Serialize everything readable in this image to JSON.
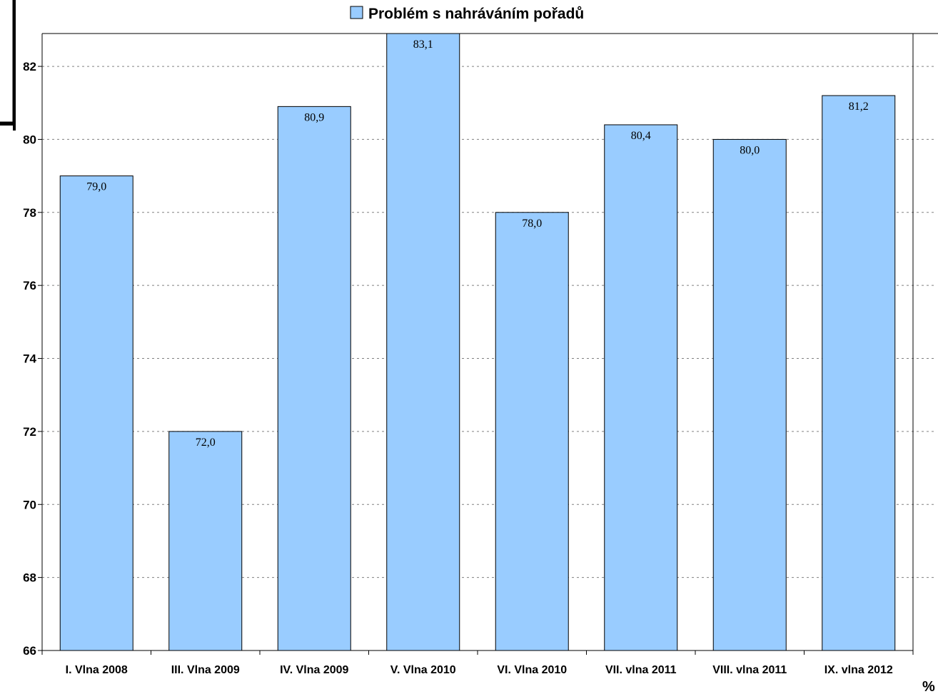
{
  "chart_data": {
    "type": "bar",
    "categories": [
      "I. Vlna 2008",
      "III. Vlna 2009",
      "IV. Vlna 2009",
      "V. Vlna 2010",
      "VI. Vlna 2010",
      "VII. vlna 2011",
      "VIII. vlna 2011",
      "IX. vlna 2012"
    ],
    "series": [
      {
        "name": "Problém s nahráváním pořadů",
        "values": [
          79.0,
          72.0,
          80.9,
          83.1,
          78.0,
          80.4,
          80.0,
          81.2
        ],
        "data_labels": [
          "79,0",
          "72,0",
          "80,9",
          "83,1",
          "78,0",
          "80,4",
          "80,0",
          "81,2"
        ]
      }
    ],
    "ylim": [
      66,
      82.9
    ],
    "yticks": [
      66,
      68,
      70,
      72,
      74,
      76,
      78,
      80,
      82
    ],
    "ytick_labels": [
      "66",
      "68",
      "70",
      "72",
      "74",
      "76",
      "78",
      "80",
      "82"
    ],
    "unit_label": "%",
    "legend": {
      "position": "top-center",
      "label": "Problém s nahráváním pořadů"
    },
    "grid": true,
    "colors": {
      "bar_fill": "#99ccff",
      "bar_stroke": "#000000",
      "grid": "#808080",
      "axis": "#000000"
    }
  }
}
